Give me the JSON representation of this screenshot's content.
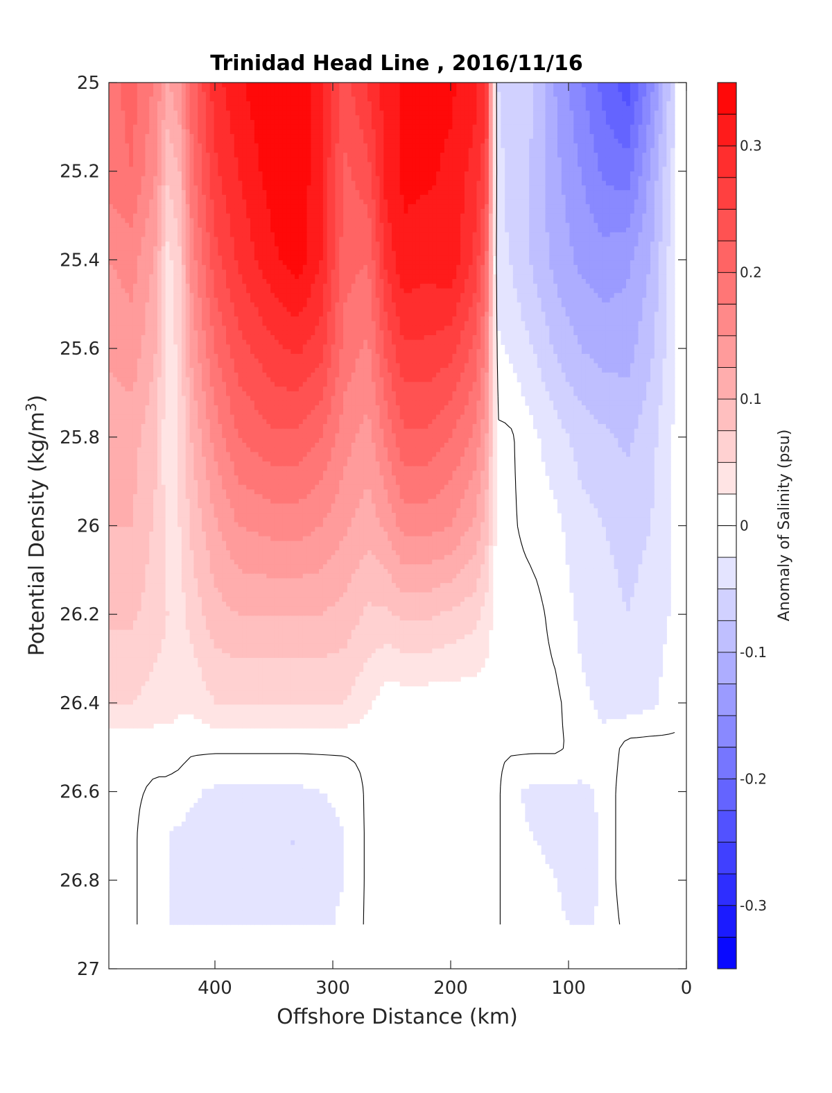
{
  "chart_data": {
    "type": "heatmap",
    "title": "Trinidad Head Line , 2016/11/16",
    "xlabel": "Offshore Distance (km)",
    "ylabel_base": "Potential Density (kg/m",
    "ylabel_sup": "3",
    "ylabel_close": ")",
    "xlim": [
      490,
      0
    ],
    "ylim": [
      25,
      27
    ],
    "x_reversed": true,
    "y_reversed": true,
    "xticks": [
      400,
      300,
      200,
      100,
      0
    ],
    "xtick_labels": [
      "400",
      "300",
      "200",
      "100",
      "0"
    ],
    "yticks": [
      25,
      25.2,
      25.4,
      25.6,
      25.8,
      26,
      26.2,
      26.4,
      26.6,
      26.8,
      27
    ],
    "ytick_labels": [
      "25",
      "25.2",
      "25.4",
      "25.6",
      "25.8",
      "26",
      "26.2",
      "26.4",
      "26.6",
      "26.8",
      "27"
    ],
    "colorbar": {
      "label": "Anomaly of Salinity (psu)",
      "range": [
        -0.35,
        0.35
      ],
      "levels": 28,
      "ticks": [
        0.3,
        0.2,
        0.1,
        0,
        -0.1,
        -0.2,
        -0.3
      ],
      "tick_labels": [
        "0.3",
        "0.2",
        "0.1",
        "0",
        "-0.1",
        "-0.2",
        "-0.3"
      ],
      "positive_color": "#ff0000",
      "negative_color": "#0000ff",
      "zero_color": "#ffffff"
    },
    "x": [
      490,
      470,
      450,
      440,
      430,
      420,
      400,
      380,
      350,
      330,
      310,
      290,
      270,
      255,
      240,
      220,
      200,
      180,
      170,
      160,
      150,
      130,
      110,
      90,
      70,
      50,
      30,
      10
    ],
    "y": [
      25,
      25.2,
      25.4,
      25.6,
      25.8,
      26,
      26.2,
      26.4,
      26.5,
      26.6,
      26.7,
      26.8,
      26.9
    ],
    "z": [
      [
        0.19,
        0.21,
        0.17,
        0.12,
        0.15,
        0.21,
        0.29,
        0.32,
        0.35,
        0.35,
        0.31,
        0.24,
        0.28,
        0.31,
        0.33,
        0.33,
        0.33,
        0.31,
        0.28,
        -0.05,
        -0.06,
        -0.07,
        -0.13,
        -0.17,
        -0.21,
        -0.24,
        -0.16,
        -0.05
      ],
      [
        0.19,
        0.2,
        0.15,
        0.08,
        0.1,
        0.19,
        0.27,
        0.3,
        0.34,
        0.35,
        0.3,
        0.22,
        0.24,
        0.31,
        0.33,
        0.33,
        0.32,
        0.29,
        0.26,
        -0.04,
        -0.06,
        -0.08,
        -0.12,
        -0.15,
        -0.18,
        -0.19,
        -0.12,
        -0.04
      ],
      [
        0.15,
        0.16,
        0.12,
        0.04,
        0.07,
        0.16,
        0.24,
        0.28,
        0.32,
        0.34,
        0.3,
        0.21,
        0.2,
        0.28,
        0.32,
        0.31,
        0.32,
        0.27,
        0.21,
        -0.04,
        -0.05,
        -0.08,
        -0.11,
        -0.13,
        -0.14,
        -0.13,
        -0.1,
        -0.03
      ],
      [
        0.13,
        0.14,
        0.1,
        0.03,
        0.06,
        0.13,
        0.2,
        0.24,
        0.27,
        0.28,
        0.26,
        0.19,
        0.17,
        0.23,
        0.27,
        0.27,
        0.26,
        0.22,
        0.17,
        -0.02,
        -0.03,
        -0.05,
        -0.08,
        -0.1,
        -0.11,
        -0.11,
        -0.08,
        -0.03
      ],
      [
        0.11,
        0.11,
        0.08,
        0.03,
        0.05,
        0.1,
        0.16,
        0.2,
        0.22,
        0.22,
        0.2,
        0.16,
        0.14,
        0.18,
        0.22,
        0.22,
        0.2,
        0.17,
        0.13,
        0.005,
        0.005,
        -0.02,
        -0.04,
        -0.06,
        -0.07,
        -0.08,
        -0.06,
        -0.02
      ],
      [
        0.1,
        0.1,
        0.07,
        0.04,
        0.05,
        0.08,
        0.12,
        0.15,
        0.16,
        0.16,
        0.15,
        0.13,
        0.11,
        0.13,
        0.16,
        0.16,
        0.15,
        0.12,
        0.09,
        0.005,
        0.005,
        -0.01,
        -0.02,
        -0.04,
        -0.05,
        -0.06,
        -0.05,
        -0.02
      ],
      [
        0.08,
        0.08,
        0.06,
        0.05,
        0.04,
        0.06,
        0.09,
        0.1,
        0.1,
        0.1,
        0.1,
        0.09,
        0.07,
        0.07,
        0.08,
        0.08,
        0.07,
        0.06,
        0.04,
        0.01,
        0.01,
        0.01,
        -0.01,
        -0.03,
        -0.04,
        -0.05,
        -0.04,
        -0.02
      ],
      [
        0.05,
        0.05,
        0.04,
        0.04,
        0.03,
        0.03,
        0.05,
        0.05,
        0.05,
        0.05,
        0.05,
        0.05,
        0.03,
        0.01,
        0.01,
        0.01,
        0.01,
        0.01,
        0.01,
        0.01,
        0.01,
        0.01,
        0.005,
        -0.02,
        -0.03,
        -0.04,
        -0.03,
        -0.01
      ],
      [
        0.01,
        0.005,
        0.01,
        0.01,
        0.01,
        0.005,
        0.005,
        0.005,
        0.005,
        0.005,
        0.005,
        0.005,
        0.005,
        0.01,
        0.01,
        0.005,
        0.005,
        0.005,
        0.005,
        0.005,
        0.005,
        0.005,
        0.005,
        -0.01,
        -0.02,
        0.01,
        0.01,
        0.005
      ],
      [
        0.005,
        0.005,
        -0.005,
        -0.005,
        -0.01,
        -0.02,
        -0.03,
        -0.03,
        -0.03,
        -0.03,
        -0.025,
        -0.02,
        0.005,
        0.01,
        0.005,
        0.005,
        0.005,
        0.005,
        0.005,
        0.005,
        -0.02,
        -0.03,
        -0.03,
        -0.03,
        -0.02,
        0.02,
        0.02,
        0.005
      ],
      [
        0.005,
        0.005,
        -0.02,
        -0.025,
        -0.03,
        -0.035,
        -0.04,
        -0.05,
        -0.05,
        -0.05,
        -0.035,
        -0.025,
        0.005,
        0.01,
        0.01,
        0.005,
        0.005,
        0.005,
        0.005,
        0.005,
        -0.02,
        -0.025,
        -0.03,
        -0.04,
        -0.02,
        0.02,
        0.02,
        0.005
      ],
      [
        0.005,
        0.005,
        -0.02,
        -0.025,
        -0.03,
        -0.04,
        -0.05,
        -0.05,
        -0.05,
        -0.05,
        -0.035,
        -0.025,
        0.005,
        0.01,
        0.01,
        0.005,
        0.01,
        0.005,
        0.005,
        0.005,
        -0.02,
        -0.02,
        -0.025,
        -0.04,
        -0.02,
        0.02,
        0.02,
        0.005
      ],
      [
        0.005,
        0.005,
        -0.02,
        -0.025,
        -0.03,
        -0.04,
        -0.05,
        -0.05,
        -0.05,
        -0.05,
        -0.03,
        -0.02,
        0.005,
        0.01,
        0.01,
        0.005,
        0.005,
        0.005,
        0.005,
        0.005,
        -0.02,
        -0.02,
        -0.02,
        -0.03,
        -0.02,
        0.01,
        0.01,
        0.005
      ]
    ]
  }
}
